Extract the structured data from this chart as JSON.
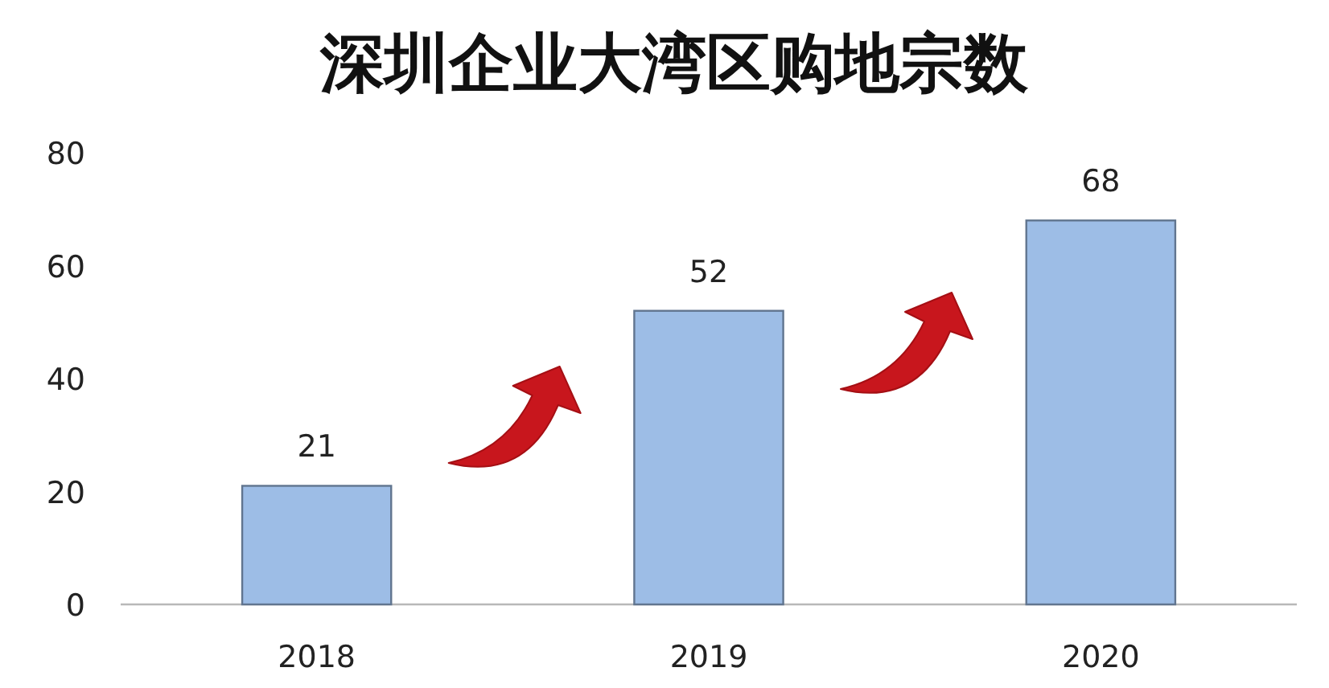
{
  "chart_data": {
    "type": "bar",
    "title": "深圳企业大湾区购地宗数",
    "categories": [
      "2018",
      "2019",
      "2020"
    ],
    "values": [
      21,
      52,
      68
    ],
    "color": "#9dbde6",
    "ylim": [
      0,
      80
    ],
    "yticks": [
      0,
      20,
      40,
      60,
      80
    ],
    "data_labels": true
  }
}
